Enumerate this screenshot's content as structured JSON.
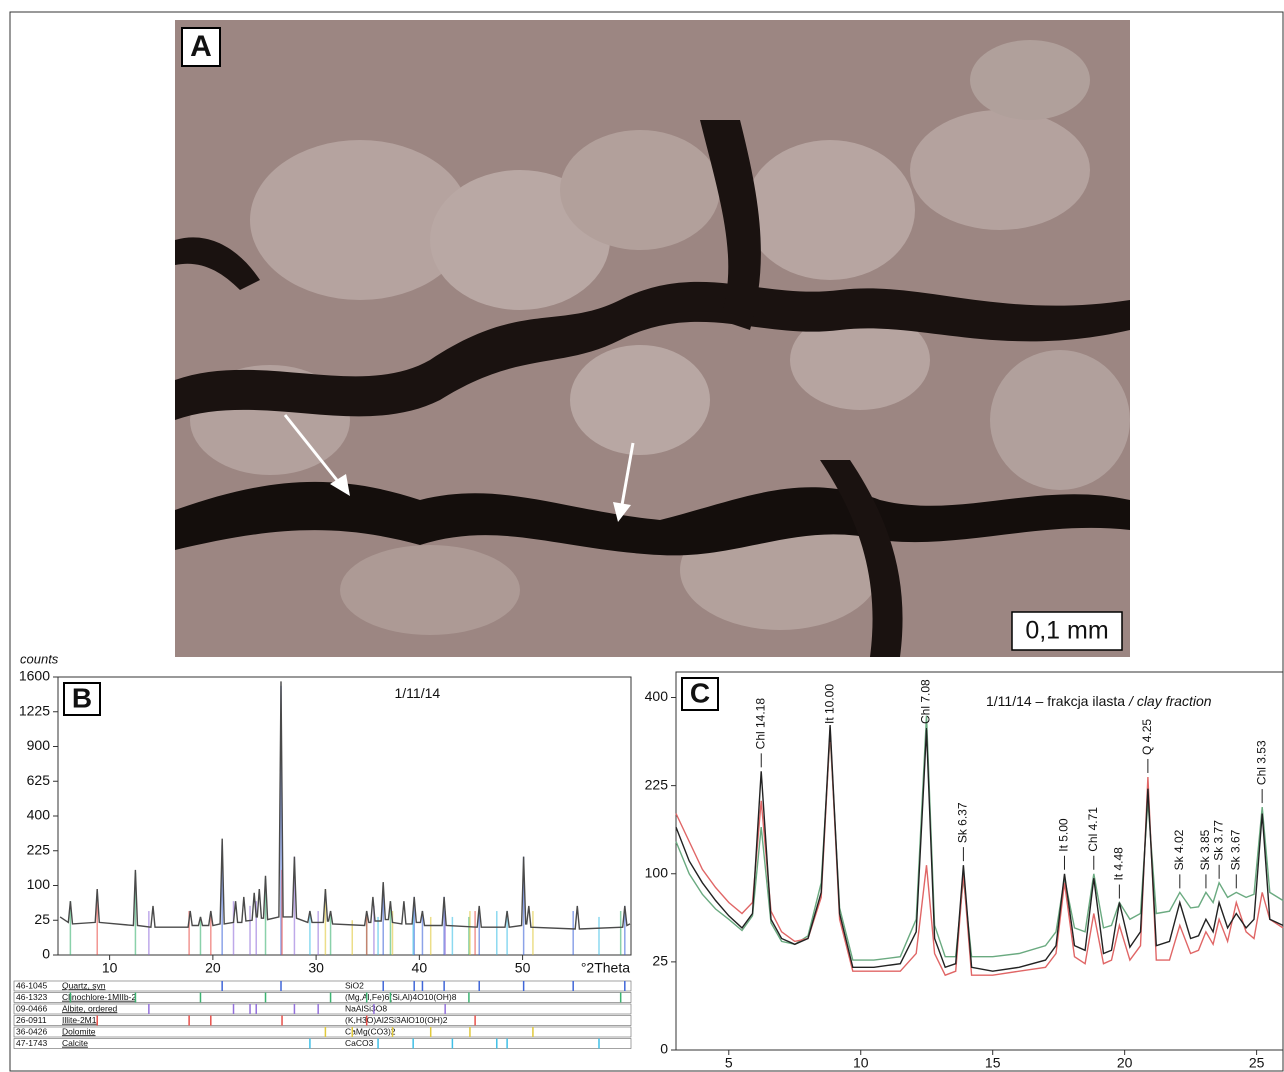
{
  "photo": {
    "label": "A",
    "scale_bar": "0,1 mm"
  },
  "chart_data": [
    {
      "type": "line",
      "panel_label": "B",
      "title": "1/11/14",
      "y_label": "counts",
      "x_label": "°2Theta",
      "yscale": "sqrt",
      "xlim": [
        5,
        60.5
      ],
      "ylim": [
        0,
        1600
      ],
      "xticks": [
        10,
        20,
        30,
        40,
        50
      ],
      "yticks": [
        0,
        25,
        100,
        225,
        400,
        625,
        900,
        1225,
        1600
      ],
      "x": [
        5.2,
        6.0,
        6.2,
        6.4,
        8.6,
        8.8,
        9.0,
        12.3,
        12.5,
        12.7,
        14.0,
        14.2,
        14.4,
        17.6,
        17.8,
        18.0,
        18.6,
        18.8,
        19.0,
        19.6,
        19.8,
        20.0,
        20.7,
        20.9,
        21.1,
        22.0,
        22.2,
        22.4,
        22.8,
        23.0,
        23.2,
        23.8,
        24.0,
        24.2,
        24.3,
        24.5,
        24.7,
        24.9,
        25.1,
        25.3,
        26.4,
        26.6,
        26.8,
        27.7,
        27.9,
        28.1,
        29.2,
        29.4,
        29.6,
        30.7,
        30.9,
        31.1,
        31.2,
        31.4,
        31.6,
        34.7,
        34.9,
        35.1,
        35.3,
        35.5,
        35.7,
        36.3,
        36.5,
        36.7,
        37.0,
        37.2,
        37.4,
        38.3,
        38.5,
        38.7,
        39.3,
        39.5,
        39.7,
        40.1,
        40.3,
        40.5,
        42.2,
        42.4,
        42.6,
        45.6,
        45.8,
        46.0,
        48.3,
        48.5,
        48.7,
        49.9,
        50.1,
        50.3,
        50.4,
        50.6,
        50.8,
        55.1,
        55.3,
        55.5,
        59.7,
        59.9,
        60.1,
        60.4
      ],
      "series": [
        {
          "color": "#4a4a4a",
          "values": [
            30,
            22,
            60,
            20,
            22,
            90,
            22,
            18,
            150,
            18,
            16,
            50,
            16,
            16,
            40,
            18,
            18,
            30,
            18,
            18,
            40,
            18,
            20,
            280,
            20,
            22,
            60,
            22,
            22,
            70,
            24,
            25,
            80,
            30,
            30,
            90,
            28,
            28,
            130,
            26,
            30,
            1550,
            30,
            30,
            200,
            28,
            22,
            40,
            22,
            22,
            90,
            24,
            24,
            40,
            20,
            18,
            40,
            22,
            22,
            70,
            24,
            24,
            110,
            26,
            26,
            60,
            22,
            20,
            60,
            20,
            20,
            70,
            22,
            22,
            40,
            18,
            18,
            70,
            18,
            16,
            50,
            16,
            16,
            40,
            16,
            18,
            200,
            20,
            20,
            50,
            16,
            14,
            50,
            14,
            16,
            50,
            18,
            20
          ]
        }
      ],
      "phases": [
        {
          "code": "46-1045",
          "name": "Quartz, syn",
          "formula": "SiO2",
          "color": "#3f66d8",
          "peak_x": [
            20.9,
            26.6,
            36.5,
            39.5,
            40.3,
            42.4,
            45.8,
            50.1,
            54.9,
            59.9
          ],
          "peak_counts": [
            250,
            1500,
            100,
            70,
            40,
            70,
            40,
            200,
            40,
            50
          ]
        },
        {
          "code": "46-1323",
          "name": "Clinochlore-1MIIb-2",
          "formula": "(Mg,Al,Fe)6(Si,Al)4O10(OH)8",
          "color": "#3cb371",
          "peak_x": [
            6.2,
            12.5,
            18.8,
            25.1,
            31.4,
            34.9,
            37.2,
            44.8,
            59.5
          ],
          "peak_counts": [
            60,
            140,
            30,
            120,
            40,
            40,
            60,
            30,
            40
          ]
        },
        {
          "code": "09-0466",
          "name": "Albite, ordered",
          "formula": "NaAlSi3O8",
          "color": "#9370db",
          "peak_x": [
            13.8,
            22.0,
            23.6,
            24.2,
            27.9,
            30.2,
            35.6,
            42.5
          ],
          "peak_counts": [
            40,
            60,
            50,
            60,
            200,
            40,
            50,
            40
          ]
        },
        {
          "code": "26-0911",
          "name": "Illite-2M1",
          "formula": "(K,H3O)Al2Si3AlO10(OH)2",
          "color": "#e8504a",
          "peak_x": [
            8.8,
            17.7,
            19.8,
            26.7,
            34.9,
            45.4
          ],
          "peak_counts": [
            90,
            40,
            40,
            150,
            40,
            40
          ]
        },
        {
          "code": "36-0426",
          "name": "Dolomite",
          "formula": "CaMg(CO3)2",
          "color": "#e0c83a",
          "peak_x": [
            30.9,
            33.5,
            37.4,
            41.1,
            44.9,
            51.0
          ],
          "peak_counts": [
            90,
            25,
            40,
            30,
            40,
            40
          ]
        },
        {
          "code": "47-1743",
          "name": "Calcite",
          "formula": "CaCO3",
          "color": "#3fbfe6",
          "peak_x": [
            29.4,
            36.0,
            39.4,
            43.2,
            47.5,
            48.5,
            57.4
          ],
          "peak_counts": [
            40,
            30,
            40,
            30,
            40,
            40,
            30
          ]
        }
      ]
    },
    {
      "type": "line",
      "panel_label": "C",
      "title": "1/11/14 – frakcja ilasta",
      "title_en": "/ clay fraction",
      "yscale": "sqrt",
      "xlim": [
        3,
        26
      ],
      "ylim": [
        0,
        460
      ],
      "xticks": [
        5,
        10,
        15,
        20,
        25
      ],
      "yticks": [
        0,
        25,
        100,
        225,
        400
      ],
      "x": [
        3,
        3.5,
        4,
        4.5,
        5,
        5.5,
        5.9,
        6.23,
        6.6,
        7,
        7.5,
        8,
        8.5,
        8.84,
        9.2,
        9.7,
        10.5,
        11.5,
        12.1,
        12.49,
        12.8,
        13.2,
        13.6,
        13.89,
        14.2,
        15,
        16,
        17,
        17.4,
        17.72,
        18.1,
        18.5,
        18.83,
        19.2,
        19.5,
        19.8,
        20.2,
        20.6,
        20.88,
        21.2,
        21.7,
        22.09,
        22.5,
        22.8,
        23.08,
        23.35,
        23.58,
        23.9,
        24.23,
        24.6,
        24.9,
        25.21,
        25.5,
        26
      ],
      "series": [
        {
          "color": "#6aaa80",
          "values": [
            140,
            100,
            78,
            64,
            55,
            46,
            58,
            160,
            52,
            38,
            36,
            42,
            90,
            320,
            65,
            26,
            26,
            28,
            55,
            360,
            50,
            28,
            28,
            95,
            28,
            28,
            30,
            35,
            45,
            95,
            48,
            45,
            100,
            48,
            50,
            70,
            55,
            60,
            200,
            60,
            62,
            80,
            65,
            66,
            80,
            70,
            90,
            75,
            80,
            75,
            78,
            190,
            80,
            72
          ]
        },
        {
          "color": "#e06666",
          "values": [
            180,
            140,
            105,
            85,
            70,
            60,
            70,
            200,
            62,
            45,
            38,
            40,
            75,
            330,
            55,
            20,
            20,
            20,
            30,
            110,
            30,
            18,
            20,
            100,
            18,
            18,
            20,
            22,
            30,
            90,
            28,
            24,
            60,
            24,
            26,
            50,
            26,
            35,
            240,
            26,
            26,
            50,
            30,
            32,
            45,
            36,
            55,
            38,
            70,
            45,
            40,
            80,
            55,
            48
          ]
        },
        {
          "color": "#222222",
          "values": [
            160,
            115,
            90,
            72,
            58,
            48,
            60,
            250,
            55,
            40,
            36,
            40,
            80,
            340,
            60,
            22,
            22,
            24,
            45,
            330,
            40,
            22,
            24,
            110,
            22,
            20,
            22,
            26,
            35,
            100,
            35,
            32,
            95,
            30,
            32,
            70,
            34,
            45,
            220,
            35,
            38,
            70,
            40,
            42,
            55,
            45,
            70,
            48,
            60,
            48,
            55,
            180,
            55,
            50
          ]
        }
      ],
      "annotations": [
        {
          "text": "Chl 14.18",
          "x": 6.23
        },
        {
          "text": "It 10.00",
          "x": 8.84
        },
        {
          "text": "Chl 7.08",
          "x": 12.49
        },
        {
          "text": "Sk 6.37",
          "x": 13.89
        },
        {
          "text": "It 5.00",
          "x": 17.72
        },
        {
          "text": "Chl 4.71",
          "x": 18.83
        },
        {
          "text": "It 4.48",
          "x": 19.8
        },
        {
          "text": "Q 4.25",
          "x": 20.88
        },
        {
          "text": "Sk 4.02",
          "x": 22.09
        },
        {
          "text": "Sk 3.85",
          "x": 23.08
        },
        {
          "text": "Sk 3.77",
          "x": 23.58
        },
        {
          "text": "Sk 3.67",
          "x": 24.23
        },
        {
          "text": "Chl 3.53",
          "x": 25.21
        }
      ]
    }
  ]
}
